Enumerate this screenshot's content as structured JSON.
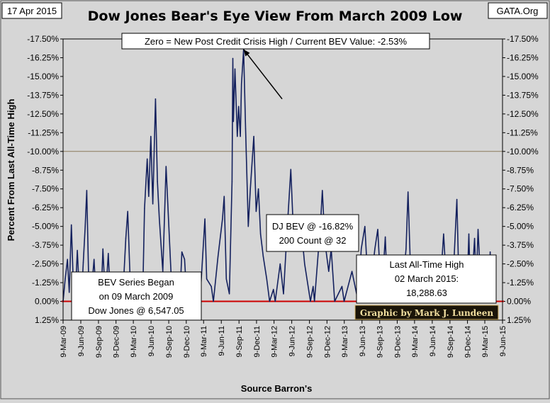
{
  "chart_data": {
    "type": "line",
    "title": "Dow Jones Bear's Eye View From March 2009 Low",
    "date_label": "17 Apr 2015",
    "source_tag": "GATA.Org",
    "subtitle": "Zero = New Post Credit Crisis High / Current BEV Value:  -2.53%",
    "ylabel": "Percent From Last All-Time High",
    "xlabel": "Source Barron's",
    "ylim": [
      -17.5,
      1.25
    ],
    "y_ticks": [
      1.25,
      0.0,
      -1.25,
      -2.5,
      -3.75,
      -5.0,
      -6.25,
      -7.5,
      -8.75,
      -10.0,
      -11.25,
      -12.5,
      -13.75,
      -15.0,
      -16.25,
      -17.5
    ],
    "y_tick_labels": [
      "1.25%",
      "0.00%",
      "-1.25%",
      "-2.50%",
      "-3.75%",
      "-5.00%",
      "-6.25%",
      "-7.50%",
      "-8.75%",
      "-10.00%",
      "-11.25%",
      "-12.50%",
      "-13.75%",
      "-15.00%",
      "-16.25%",
      "-17.50%"
    ],
    "x_tick_labels": [
      "9-Mar-09",
      "9-Jun-09",
      "9-Sep-09",
      "9-Dec-09",
      "9-Mar-10",
      "9-Jun-10",
      "9-Sep-10",
      "9-Dec-10",
      "9-Mar-11",
      "9-Jun-11",
      "9-Sep-11",
      "9-Dec-11",
      "9-Mar-12",
      "9-Jun-12",
      "9-Sep-12",
      "9-Dec-12",
      "9-Mar-13",
      "9-Jun-13",
      "9-Sep-13",
      "9-Dec-13",
      "9-Mar-14",
      "9-Jun-14",
      "9-Sep-14",
      "9-Dec-14",
      "9-Mar-15",
      "9-Jun-15"
    ],
    "zones": [
      {
        "from": 1.25,
        "to": -10.0,
        "color": "#ffffc4"
      },
      {
        "from": -10.0,
        "to": -17.5,
        "color": "#dccaa0"
      }
    ],
    "reference_line": {
      "y": 0.0,
      "color": "#cc0000"
    },
    "series": [
      {
        "color": "#14215e",
        "points": [
          [
            "2009-03-09",
            0.0
          ],
          [
            "2009-03-20",
            -1.5
          ],
          [
            "2009-04-01",
            -2.8
          ],
          [
            "2009-04-10",
            -0.6
          ],
          [
            "2009-04-21",
            -5.1
          ],
          [
            "2009-05-01",
            -1.2
          ],
          [
            "2009-05-11",
            -0.2
          ],
          [
            "2009-05-22",
            -3.4
          ],
          [
            "2009-06-02",
            -0.4
          ],
          [
            "2009-06-12",
            0.0
          ],
          [
            "2009-06-22",
            -2.6
          ],
          [
            "2009-07-02",
            -5.0
          ],
          [
            "2009-07-10",
            -7.4
          ],
          [
            "2009-07-20",
            -1.5
          ],
          [
            "2009-07-30",
            0.0
          ],
          [
            "2009-08-17",
            -2.8
          ],
          [
            "2009-08-28",
            0.0
          ],
          [
            "2009-09-10",
            0.0
          ],
          [
            "2009-09-25",
            -1.0
          ],
          [
            "2009-10-02",
            -3.5
          ],
          [
            "2009-10-15",
            0.0
          ],
          [
            "2009-10-30",
            -3.2
          ],
          [
            "2009-11-10",
            0.0
          ],
          [
            "2009-12-10",
            -1.0
          ],
          [
            "2009-12-28",
            0.0
          ],
          [
            "2010-01-20",
            -2.0
          ],
          [
            "2010-01-29",
            -4.2
          ],
          [
            "2010-02-08",
            -6.0
          ],
          [
            "2010-02-19",
            -2.0
          ],
          [
            "2010-03-05",
            0.0
          ],
          [
            "2010-04-26",
            0.0
          ],
          [
            "2010-05-06",
            -6.2
          ],
          [
            "2010-05-20",
            -9.5
          ],
          [
            "2010-05-28",
            -7.0
          ],
          [
            "2010-06-08",
            -11.0
          ],
          [
            "2010-06-18",
            -6.5
          ],
          [
            "2010-07-02",
            -13.5
          ],
          [
            "2010-07-12",
            -8.0
          ],
          [
            "2010-07-22",
            -5.5
          ],
          [
            "2010-08-09",
            -2.0
          ],
          [
            "2010-08-26",
            -9.0
          ],
          [
            "2010-09-13",
            -4.0
          ],
          [
            "2010-09-24",
            -1.0
          ],
          [
            "2010-10-05",
            0.0
          ],
          [
            "2010-10-15",
            -0.6
          ],
          [
            "2010-11-05",
            0.0
          ],
          [
            "2010-11-16",
            -3.3
          ],
          [
            "2010-11-30",
            -2.8
          ],
          [
            "2010-12-13",
            0.0
          ],
          [
            "2011-01-31",
            -0.4
          ],
          [
            "2011-02-18",
            0.0
          ],
          [
            "2011-03-16",
            -5.5
          ],
          [
            "2011-03-25",
            -1.5
          ],
          [
            "2011-04-18",
            -1.0
          ],
          [
            "2011-04-29",
            0.0
          ],
          [
            "2011-05-23",
            -3.0
          ],
          [
            "2011-06-15",
            -5.5
          ],
          [
            "2011-06-24",
            -7.0
          ],
          [
            "2011-07-05",
            -1.5
          ],
          [
            "2011-07-21",
            -0.5
          ],
          [
            "2011-08-04",
            -8.0
          ],
          [
            "2011-08-08",
            -16.2
          ],
          [
            "2011-08-11",
            -12.0
          ],
          [
            "2011-08-19",
            -15.5
          ],
          [
            "2011-08-31",
            -11.0
          ],
          [
            "2011-09-07",
            -13.0
          ],
          [
            "2011-09-16",
            -11.0
          ],
          [
            "2011-09-22",
            -14.5
          ],
          [
            "2011-10-03",
            -16.8
          ],
          [
            "2011-10-13",
            -11.5
          ],
          [
            "2011-10-27",
            -5.0
          ],
          [
            "2011-11-07",
            -7.5
          ],
          [
            "2011-11-25",
            -11.0
          ],
          [
            "2011-12-07",
            -6.0
          ],
          [
            "2011-12-19",
            -7.5
          ],
          [
            "2011-12-30",
            -4.5
          ],
          [
            "2012-01-13",
            -3.0
          ],
          [
            "2012-01-31",
            -1.5
          ],
          [
            "2012-02-15",
            0.0
          ],
          [
            "2012-03-06",
            -0.8
          ],
          [
            "2012-03-15",
            0.0
          ],
          [
            "2012-04-10",
            -2.5
          ],
          [
            "2012-04-27",
            -0.5
          ],
          [
            "2012-05-15",
            -4.5
          ],
          [
            "2012-06-04",
            -8.8
          ],
          [
            "2012-06-18",
            -4.5
          ],
          [
            "2012-06-29",
            -3.5
          ],
          [
            "2012-07-12",
            -5.0
          ],
          [
            "2012-07-24",
            -5.5
          ],
          [
            "2012-08-15",
            -2.5
          ],
          [
            "2012-09-14",
            0.0
          ],
          [
            "2012-09-28",
            -1.0
          ],
          [
            "2012-10-05",
            0.0
          ],
          [
            "2012-10-23",
            -3.0
          ],
          [
            "2012-11-07",
            -5.5
          ],
          [
            "2012-11-15",
            -7.4
          ],
          [
            "2012-11-28",
            -4.0
          ],
          [
            "2012-12-18",
            -2.0
          ],
          [
            "2012-12-31",
            -3.5
          ],
          [
            "2013-01-18",
            0.0
          ],
          [
            "2013-02-25",
            -1.0
          ],
          [
            "2013-03-08",
            0.0
          ],
          [
            "2013-04-18",
            -2.0
          ],
          [
            "2013-05-20",
            0.0
          ],
          [
            "2013-06-05",
            -3.5
          ],
          [
            "2013-06-24",
            -5.0
          ],
          [
            "2013-07-15",
            0.0
          ],
          [
            "2013-08-15",
            -3.5
          ],
          [
            "2013-08-30",
            -4.8
          ],
          [
            "2013-09-18",
            0.0
          ],
          [
            "2013-10-08",
            -4.3
          ],
          [
            "2013-10-18",
            -1.0
          ],
          [
            "2013-11-01",
            0.0
          ],
          [
            "2013-12-16",
            -2.0
          ],
          [
            "2013-12-31",
            0.0
          ],
          [
            "2014-01-24",
            -3.5
          ],
          [
            "2014-02-03",
            -7.3
          ],
          [
            "2014-02-14",
            -3.0
          ],
          [
            "2014-03-07",
            0.0
          ],
          [
            "2014-04-14",
            -3.0
          ],
          [
            "2014-04-30",
            0.0
          ],
          [
            "2014-05-15",
            -1.5
          ],
          [
            "2014-06-09",
            0.0
          ],
          [
            "2014-07-15",
            0.0
          ],
          [
            "2014-08-07",
            -4.5
          ],
          [
            "2014-08-22",
            -1.0
          ],
          [
            "2014-09-19",
            0.0
          ],
          [
            "2014-10-01",
            -3.0
          ],
          [
            "2014-10-15",
            -6.8
          ],
          [
            "2014-10-24",
            -2.0
          ],
          [
            "2014-11-07",
            0.0
          ],
          [
            "2014-12-05",
            0.0
          ],
          [
            "2014-12-16",
            -4.5
          ],
          [
            "2014-12-26",
            0.0
          ],
          [
            "2015-01-15",
            -4.2
          ],
          [
            "2015-01-23",
            -1.0
          ],
          [
            "2015-02-02",
            -4.8
          ],
          [
            "2015-02-16",
            -1.0
          ],
          [
            "2015-03-02",
            0.0
          ],
          [
            "2015-03-11",
            -3.0
          ],
          [
            "2015-03-19",
            -0.8
          ],
          [
            "2015-03-26",
            -2.8
          ],
          [
            "2015-04-02",
            -1.5
          ],
          [
            "2015-04-06",
            -3.3
          ],
          [
            "2015-04-10",
            -1.0
          ],
          [
            "2015-04-14",
            -2.8
          ],
          [
            "2015-04-17",
            -2.53
          ]
        ]
      }
    ],
    "annotations": {
      "peak_note": [
        "DJ BEV @ -16.82%",
        "200 Count @ 32"
      ],
      "start_note": [
        "BEV Series Began",
        "on 09 March 2009",
        "Dow Jones @ 6,547.05"
      ],
      "last_high_note": [
        "Last All-Time High",
        "02 March 2015:",
        "18,288.63"
      ],
      "credit": "Graphic by Mark J. Lundeen"
    },
    "arrow": {
      "from": [
        "2012-04-20",
        -13.5
      ],
      "to": [
        "2011-10-03",
        -16.8
      ]
    }
  }
}
